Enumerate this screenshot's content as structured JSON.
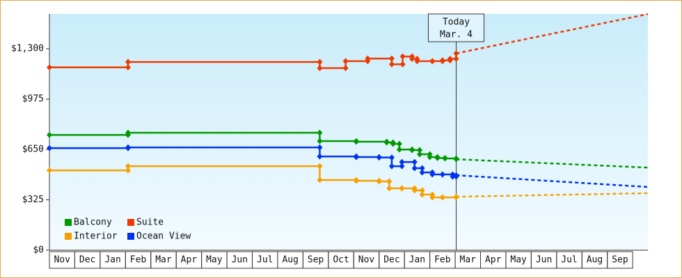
{
  "chart_data": {
    "type": "step-line",
    "categories": [
      "Nov",
      "Dec",
      "Jan",
      "Feb",
      "Mar",
      "Apr",
      "May",
      "Jun",
      "Jul",
      "Aug",
      "Sep",
      "Oct",
      "Nov",
      "Dec",
      "Jan",
      "Feb",
      "Mar",
      "Apr",
      "May",
      "Jun",
      "Jul",
      "Aug",
      "Sep"
    ],
    "xlim": [
      0,
      23.6
    ],
    "ylim": [
      0,
      1525
    ],
    "yticks": [
      {
        "value": 0,
        "label": "$0"
      },
      {
        "value": 325,
        "label": "$325"
      },
      {
        "value": 650,
        "label": "$650"
      },
      {
        "value": 975,
        "label": "$975"
      },
      {
        "value": 1300,
        "label": "$1,300"
      }
    ],
    "annotation": {
      "lines": [
        "Today",
        "Mar. 4"
      ],
      "x": 16.04
    },
    "series": [
      {
        "name": "Balcony",
        "color": "#009900",
        "x": [
          0,
          3.1,
          10.66,
          12.1,
          13.3,
          13.55,
          13.8,
          14.3,
          14.6,
          15.0,
          15.3,
          15.6,
          16.04
        ],
        "values": [
          744,
          758,
          704,
          700,
          695,
          686,
          650,
          646,
          619,
          601,
          595,
          592,
          587
        ],
        "forecast": {
          "x": [
            16.04,
            23.6
          ],
          "values": [
            587,
            533
          ]
        }
      },
      {
        "name": "Suite",
        "color": "#ee3a00",
        "x": [
          0,
          3.1,
          10.66,
          11.68,
          12.55,
          13.5,
          13.93,
          14.3,
          14.5,
          15.1,
          15.5,
          15.8,
          16.04
        ],
        "values": [
          1180,
          1215,
          1175,
          1220,
          1237,
          1200,
          1250,
          1235,
          1220,
          1220,
          1225,
          1235,
          1270
        ],
        "forecast": {
          "x": [
            16.04,
            23.6
          ],
          "values": [
            1270,
            1524
          ]
        }
      },
      {
        "name": "Interior",
        "color": "#f5a000",
        "x": [
          0,
          3.1,
          10.66,
          12.1,
          13.0,
          13.4,
          13.9,
          14.4,
          14.7,
          15.1,
          15.5,
          16.04
        ],
        "values": [
          515,
          542,
          453,
          448,
          444,
          399,
          399,
          386,
          359,
          341,
          341,
          345
        ],
        "forecast": {
          "x": [
            16.04,
            23.6
          ],
          "values": [
            345,
            368
          ]
        }
      },
      {
        "name": "Ocean View",
        "color": "#0033ee",
        "x": [
          0,
          3.1,
          10.66,
          12.1,
          13.0,
          13.5,
          13.9,
          14.4,
          14.7,
          15.1,
          15.5,
          15.9,
          16.04
        ],
        "values": [
          659,
          663,
          605,
          601,
          598,
          542,
          569,
          529,
          502,
          489,
          489,
          475,
          484
        ],
        "forecast": {
          "x": [
            16.04,
            23.6
          ],
          "values": [
            484,
            408
          ]
        }
      }
    ]
  }
}
